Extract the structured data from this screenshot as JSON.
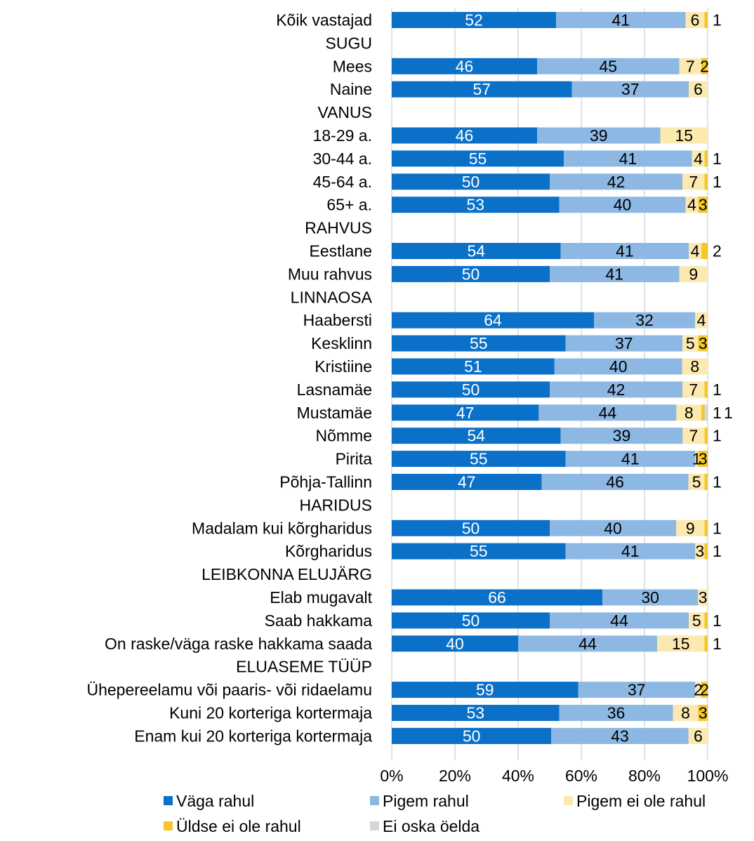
{
  "chart_data": {
    "type": "bar",
    "orientation": "horizontal",
    "stacked": "percent",
    "x_ticks": [
      "0%",
      "20%",
      "40%",
      "60%",
      "80%",
      "100%"
    ],
    "xlim": [
      0,
      100
    ],
    "grid": "vertical",
    "legend_position": "bottom",
    "rows": [
      {
        "label": "Kõik vastajad",
        "values": [
          52,
          41,
          6,
          1,
          null
        ]
      },
      {
        "label": "SUGU",
        "values": null
      },
      {
        "label": "Mees",
        "values": [
          46,
          45,
          7,
          2,
          null
        ]
      },
      {
        "label": "Naine",
        "values": [
          57,
          37,
          6,
          null,
          null
        ]
      },
      {
        "label": "VANUS",
        "values": null
      },
      {
        "label": "18-29 a.",
        "values": [
          46,
          39,
          15,
          null,
          null
        ]
      },
      {
        "label": "30-44 a.",
        "values": [
          55,
          41,
          4,
          1,
          null
        ]
      },
      {
        "label": "45-64 a.",
        "values": [
          50,
          42,
          7,
          1,
          null
        ]
      },
      {
        "label": "65+ a.",
        "values": [
          53,
          40,
          4,
          3,
          null
        ]
      },
      {
        "label": "RAHVUS",
        "values": null
      },
      {
        "label": "Eestlane",
        "values": [
          54,
          41,
          4,
          2,
          null
        ]
      },
      {
        "label": "Muu rahvus",
        "values": [
          50,
          41,
          9,
          null,
          null
        ]
      },
      {
        "label": "LINNAOSA",
        "values": null
      },
      {
        "label": "Haabersti",
        "values": [
          64,
          32,
          4,
          null,
          null
        ]
      },
      {
        "label": "Kesklinn",
        "values": [
          55,
          37,
          5,
          3,
          null
        ]
      },
      {
        "label": "Kristiine",
        "values": [
          51,
          40,
          8,
          null,
          null
        ]
      },
      {
        "label": "Lasnamäe",
        "values": [
          50,
          42,
          7,
          1,
          null
        ]
      },
      {
        "label": "Mustamäe",
        "values": [
          47,
          44,
          8,
          1,
          1
        ]
      },
      {
        "label": "Nõmme",
        "values": [
          54,
          39,
          7,
          1,
          null
        ]
      },
      {
        "label": "Pirita",
        "values": [
          55,
          41,
          1,
          3,
          null
        ]
      },
      {
        "label": "Põhja-Tallinn",
        "values": [
          47,
          46,
          5,
          1,
          null
        ]
      },
      {
        "label": "HARIDUS",
        "values": null
      },
      {
        "label": "Madalam kui kõrgharidus",
        "values": [
          50,
          40,
          9,
          1,
          null
        ]
      },
      {
        "label": "Kõrgharidus",
        "values": [
          55,
          41,
          3,
          1,
          null
        ]
      },
      {
        "label": "LEIBKONNA ELUJÄRG",
        "values": null
      },
      {
        "label": "Elab mugavalt",
        "values": [
          66,
          30,
          3,
          null,
          null
        ]
      },
      {
        "label": "Saab hakkama",
        "values": [
          50,
          44,
          5,
          1,
          null
        ]
      },
      {
        "label": "On raske/väga raske hakkama saada",
        "values": [
          40,
          44,
          15,
          1,
          null
        ]
      },
      {
        "label": "ELUASEME TÜÜP",
        "values": null
      },
      {
        "label": "Ühepereelamu või paaris- või ridaelamu",
        "values": [
          59,
          37,
          2,
          2,
          null
        ]
      },
      {
        "label": "Kuni 20 korteriga kortermaja",
        "values": [
          53,
          36,
          8,
          3,
          null
        ]
      },
      {
        "label": "Enam kui 20 korteriga kortermaja",
        "values": [
          50,
          43,
          6,
          null,
          null
        ]
      }
    ],
    "series": [
      {
        "name": "Väga rahul",
        "color": "#0a70c8",
        "label_color": "#ffffff"
      },
      {
        "name": "Pigem rahul",
        "color": "#8db8e3",
        "label_color": "#000000"
      },
      {
        "name": "Pigem ei ole rahul",
        "color": "#fbe9b0",
        "label_color": "#000000"
      },
      {
        "name": "Üldse ei ole rahul",
        "color": "#f5c728",
        "label_color": "#000000"
      },
      {
        "name": "Ei oska öelda",
        "color": "#d6d6d6",
        "label_color": "#000000"
      }
    ]
  }
}
